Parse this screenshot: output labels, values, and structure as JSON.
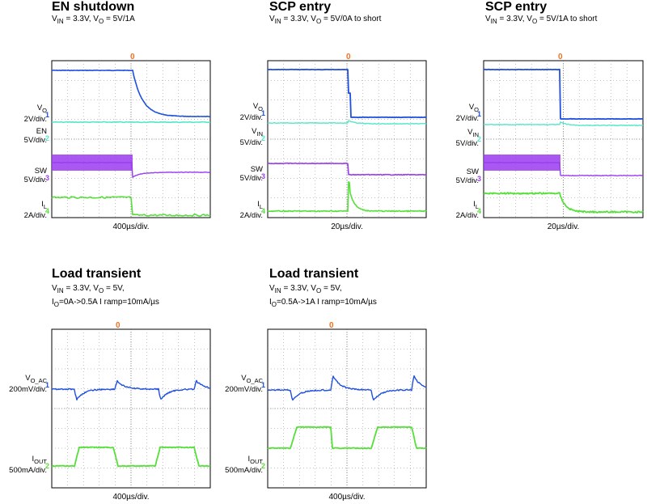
{
  "colors": {
    "vout": "#1f4fe0",
    "en": "#54e8c8",
    "sw": "#9a3cf0",
    "il": "#54e038",
    "trigger": "#f07020",
    "grid": "#888888"
  },
  "chart_data": [
    {
      "type": "line",
      "title": "EN shutdown",
      "conditions_html": "V<sub>IN</sub> = 3.3V, V<sub>O</sub> = 5V/1A",
      "timebase": "400µs/div.",
      "channels": [
        {
          "label_html": "V<sub>O</sub>",
          "scale": "2V/div.",
          "color": "vout"
        },
        {
          "label_html": "EN",
          "scale": "5V/div.",
          "color": "en"
        },
        {
          "label_html": "SW",
          "scale": "5V/div.",
          "color": "sw"
        },
        {
          "label_html": "I<sub>L</sub>",
          "scale": "2A/div.",
          "color": "il"
        }
      ]
    },
    {
      "type": "line",
      "title": "SCP entry",
      "conditions_html": "V<sub>IN</sub> = 3.3V, V<sub>O</sub> = 5V/0A to short",
      "timebase": "20µs/div.",
      "channels": [
        {
          "label_html": "V<sub>O</sub>",
          "scale": "2V/div.",
          "color": "vout"
        },
        {
          "label_html": "V<sub>IN</sub>",
          "scale": "5V/div.",
          "color": "en"
        },
        {
          "label_html": "SW",
          "scale": "5V/div.",
          "color": "sw"
        },
        {
          "label_html": "I<sub>L</sub>",
          "scale": "2A/div.",
          "color": "il"
        }
      ]
    },
    {
      "type": "line",
      "title": "SCP entry",
      "conditions_html": "V<sub>IN</sub> = 3.3V, V<sub>O</sub> = 5V/1A to short",
      "timebase": "20µs/div.",
      "channels": [
        {
          "label_html": "V<sub>O</sub>",
          "scale": "2V/div.",
          "color": "vout"
        },
        {
          "label_html": "V<sub>IN</sub>",
          "scale": "5V/div.",
          "color": "en"
        },
        {
          "label_html": "SW",
          "scale": "5V/div.",
          "color": "sw"
        },
        {
          "label_html": "I<sub>L</sub>",
          "scale": "2A/div.",
          "color": "il"
        }
      ]
    },
    {
      "type": "line",
      "title": "Load transient",
      "conditions_html": "V<sub>IN</sub> = 3.3V, V<sub>O</sub> = 5V,<br>I<sub>O</sub>=0A-&gt;0.5A I ramp=10mA/µs",
      "timebase": "400µs/div.",
      "channels": [
        {
          "label_html": "V<sub>O_AC</sub>",
          "scale": "200mV/div.",
          "color": "vout"
        },
        {
          "label_html": "I<sub>OUT</sub>",
          "scale": "500mA/div.",
          "color": "il"
        }
      ]
    },
    {
      "type": "line",
      "title": "Load transient",
      "conditions_html": "V<sub>IN</sub> = 3.3V, V<sub>O</sub> = 5V,<br>I<sub>O</sub>=0.5A-&gt;1A I ramp=10mA/µs",
      "timebase": "400µs/div.",
      "channels": [
        {
          "label_html": "V<sub>O_AC</sub>",
          "scale": "200mV/div.",
          "color": "vout"
        },
        {
          "label_html": "I<sub>OUT</sub>",
          "scale": "500mA/div.",
          "color": "il"
        }
      ]
    }
  ]
}
